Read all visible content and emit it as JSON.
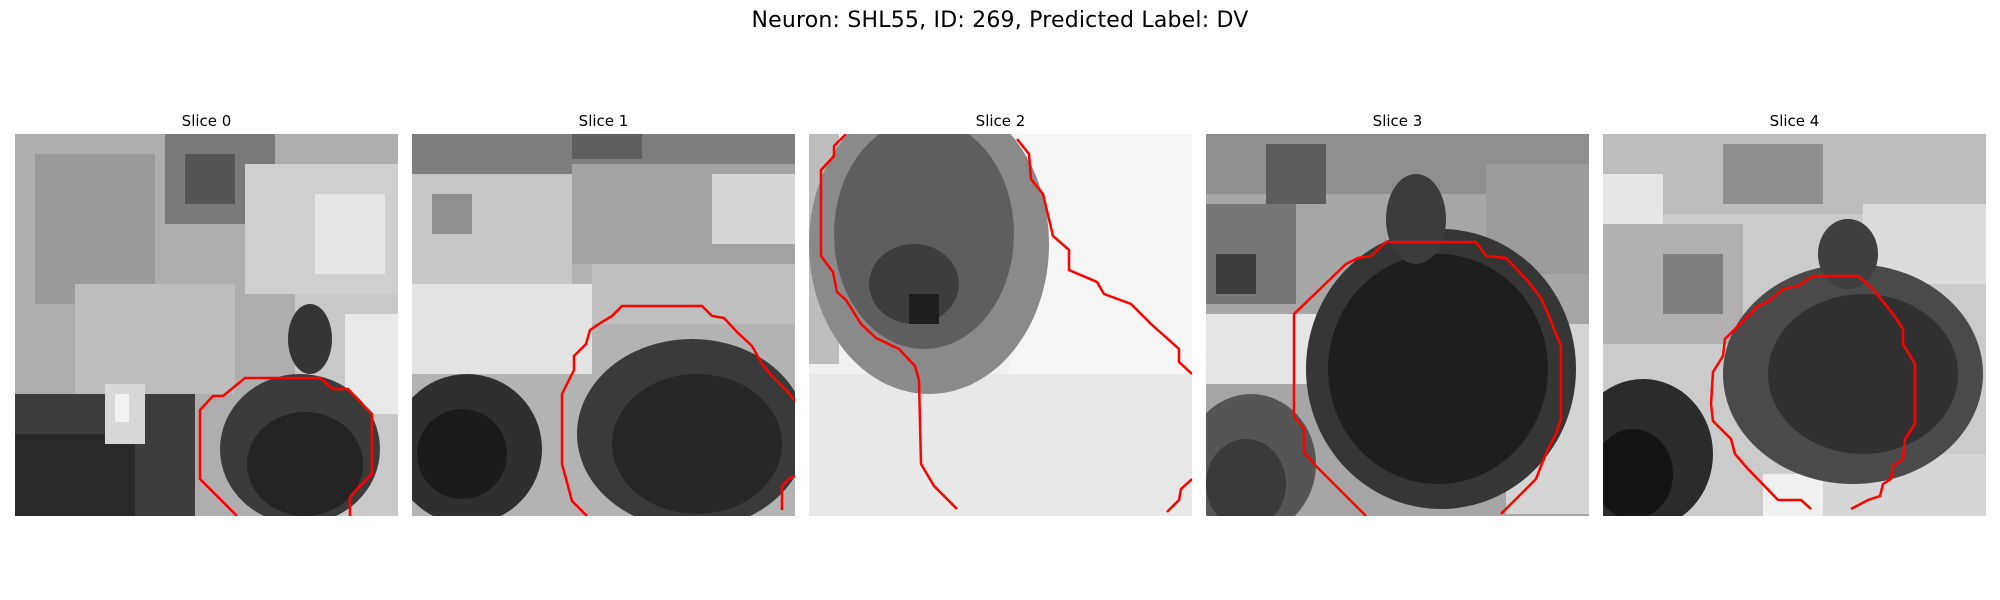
{
  "figure": {
    "title": "Neuron: SHL55, ID: 269, Predicted Label: DV",
    "contour_color": "#ff0000"
  },
  "panels": [
    {
      "title": "Slice 0"
    },
    {
      "title": "Slice 1"
    },
    {
      "title": "Slice 2"
    },
    {
      "title": "Slice 3"
    },
    {
      "title": "Slice 4"
    }
  ]
}
